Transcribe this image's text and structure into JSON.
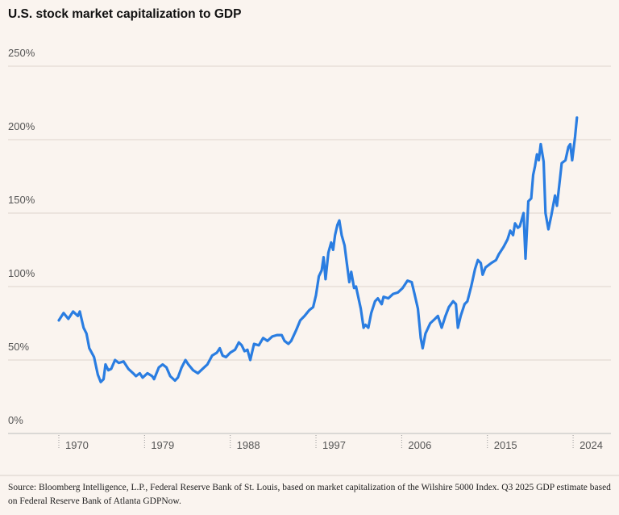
{
  "chart_data": {
    "type": "line",
    "title": "U.S. stock market capitalization to GDP",
    "source": "Source: Bloomberg Intelligence, L.P., Federal Reserve Bank of St. Louis, based on market capitalization of the Wilshire 5000 Index. Q3 2025 GDP estimate based on Federal Reserve Bank of Atlanta GDPNow.",
    "color": "#2a7de1",
    "grid": true,
    "x": [
      1970,
      1970.5,
      1971,
      1971.5,
      1972,
      1972.2,
      1972.6,
      1972.9,
      1973.2,
      1973.7,
      1974.1,
      1974.4,
      1974.7,
      1974.9,
      1975.2,
      1975.5,
      1975.9,
      1976.3,
      1976.8,
      1977.3,
      1977.8,
      1978.1,
      1978.5,
      1978.8,
      1979.3,
      1979.8,
      1980.0,
      1980.5,
      1980.9,
      1981.3,
      1981.7,
      1982.2,
      1982.5,
      1982.9,
      1983.3,
      1983.6,
      1984.1,
      1984.6,
      1985.1,
      1985.6,
      1986.1,
      1986.6,
      1986.9,
      1987.2,
      1987.55,
      1988.0,
      1988.5,
      1988.9,
      1989.2,
      1989.5,
      1989.8,
      1990.1,
      1990.5,
      1991.0,
      1991.45,
      1991.9,
      1992.4,
      1992.9,
      1993.4,
      1993.7,
      1994.1,
      1994.4,
      1994.9,
      1995.35,
      1995.8,
      1996.3,
      1996.7,
      1997.0,
      1997.3,
      1997.6,
      1997.8,
      1998.0,
      1998.3,
      1998.6,
      1998.8,
      1999.0,
      1999.25,
      1999.45,
      1999.7,
      2000.0,
      2000.2,
      2000.5,
      2000.7,
      2001.0,
      2001.2,
      2001.7,
      2002.0,
      2002.2,
      2002.5,
      2002.8,
      2003.2,
      2003.5,
      2003.9,
      2004.1,
      2004.6,
      2005.1,
      2005.6,
      2006.1,
      2006.6,
      2007.05,
      2007.35,
      2007.7,
      2008.0,
      2008.2,
      2008.5,
      2009.0,
      2009.5,
      2009.8,
      2010.2,
      2010.6,
      2010.95,
      2011.4,
      2011.7,
      2011.9,
      2012.2,
      2012.6,
      2012.9,
      2013.3,
      2013.7,
      2014.0,
      2014.3,
      2014.5,
      2014.8,
      2015.4,
      2015.9,
      2016.2,
      2016.7,
      2017.1,
      2017.4,
      2017.7,
      2017.9,
      2018.2,
      2018.4,
      2018.8,
      2019.0,
      2019.3,
      2019.6,
      2019.8,
      2020.0,
      2020.2,
      2020.4,
      2020.6,
      2020.9,
      2021.1,
      2021.4,
      2021.7,
      2022.1,
      2022.3,
      2022.6,
      2022.8,
      2023.2,
      2023.5,
      2023.7,
      2023.9,
      2024.2,
      2024.4
    ],
    "values": [
      77,
      82,
      78,
      83,
      80,
      83,
      72,
      68,
      58,
      52,
      40,
      35,
      37,
      47,
      43,
      44,
      50,
      48,
      49,
      44,
      41,
      39,
      41,
      38,
      41,
      39,
      37,
      45,
      47,
      45,
      39,
      36,
      38,
      45,
      50,
      47,
      43,
      41,
      44,
      47,
      53,
      55,
      58,
      53,
      52,
      55,
      57,
      62,
      60,
      56,
      57,
      50,
      61,
      60,
      65,
      63,
      66,
      67,
      67,
      63,
      61,
      63,
      70,
      77,
      80,
      84,
      86,
      94,
      107,
      111,
      120,
      105,
      123,
      130,
      125,
      135,
      142,
      145,
      135,
      128,
      118,
      103,
      110,
      99,
      100,
      85,
      72,
      74,
      72,
      82,
      90,
      92,
      88,
      93,
      92,
      95,
      96,
      99,
      104,
      103,
      95,
      85,
      65,
      58,
      68,
      75,
      78,
      80,
      72,
      80,
      86,
      90,
      88,
      72,
      80,
      88,
      90,
      100,
      112,
      118,
      116,
      108,
      113,
      116,
      118,
      122,
      127,
      132,
      138,
      135,
      143,
      140,
      141,
      150,
      119,
      158,
      160,
      176,
      182,
      190,
      186,
      197,
      185,
      150,
      139,
      148,
      162,
      155,
      172,
      184,
      186,
      195,
      197,
      186,
      202,
      215
    ],
    "xlim": [
      1964.67,
      2027.97
    ],
    "xticks": [
      1970,
      1979,
      1988,
      1997,
      2006,
      2015,
      2024
    ],
    "ylim": [
      0,
      250
    ],
    "yticks": [
      {
        "value": 0,
        "label": "0%"
      },
      {
        "value": 50,
        "label": "50%"
      },
      {
        "value": 100,
        "label": "100%"
      },
      {
        "value": 150,
        "label": "150%"
      },
      {
        "value": 200,
        "label": "200%"
      },
      {
        "value": 250,
        "label": "250%"
      }
    ]
  }
}
